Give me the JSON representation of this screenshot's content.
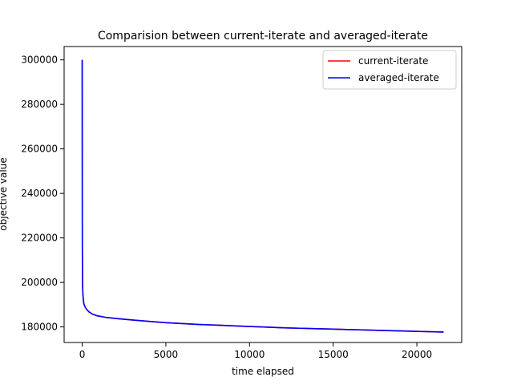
{
  "chart_data": {
    "type": "line",
    "title": "Comparision between current-iterate and averaged-iterate",
    "xlabel": "time elapsed",
    "ylabel": "objective value",
    "xlim": [
      -1080,
      22680
    ],
    "ylim": [
      173000,
      306000
    ],
    "xticks": [
      0,
      5000,
      10000,
      15000,
      20000
    ],
    "yticks": [
      180000,
      200000,
      220000,
      240000,
      260000,
      280000,
      300000
    ],
    "grid": false,
    "legend_position": "top-right",
    "series": [
      {
        "name": "current-iterate",
        "color": "#ff0000",
        "x": [
          0,
          5,
          10,
          20,
          40,
          70,
          100,
          150,
          250,
          400,
          600,
          900,
          1400,
          2000,
          3000,
          4000,
          5000,
          6000,
          7000,
          8000,
          9000,
          10000,
          11000,
          12000,
          13000,
          14000,
          15000,
          16000,
          17000,
          18000,
          19000,
          20000,
          21000,
          21600
        ],
        "y": [
          300000,
          250000,
          215000,
          200000,
          195000,
          192000,
          190500,
          189300,
          188000,
          186800,
          185800,
          185000,
          184300,
          183800,
          183100,
          182500,
          181900,
          181500,
          181100,
          180800,
          180500,
          180200,
          179900,
          179600,
          179400,
          179200,
          179000,
          178800,
          178600,
          178400,
          178200,
          178000,
          177800,
          177700
        ]
      },
      {
        "name": "averaged-iterate",
        "color": "#0000ff",
        "x": [
          0,
          5,
          10,
          20,
          40,
          70,
          100,
          150,
          250,
          400,
          600,
          900,
          1400,
          2000,
          3000,
          4000,
          5000,
          6000,
          7000,
          8000,
          9000,
          10000,
          11000,
          12000,
          13000,
          14000,
          15000,
          16000,
          17000,
          18000,
          19000,
          20000,
          21000,
          21600
        ],
        "y": [
          300000,
          250000,
          215000,
          200000,
          195000,
          192000,
          190500,
          189300,
          188000,
          186800,
          185800,
          185000,
          184300,
          183800,
          183100,
          182500,
          181900,
          181500,
          181100,
          180800,
          180500,
          180200,
          179900,
          179600,
          179400,
          179200,
          179000,
          178800,
          178600,
          178400,
          178200,
          178000,
          177800,
          177700
        ]
      }
    ]
  }
}
